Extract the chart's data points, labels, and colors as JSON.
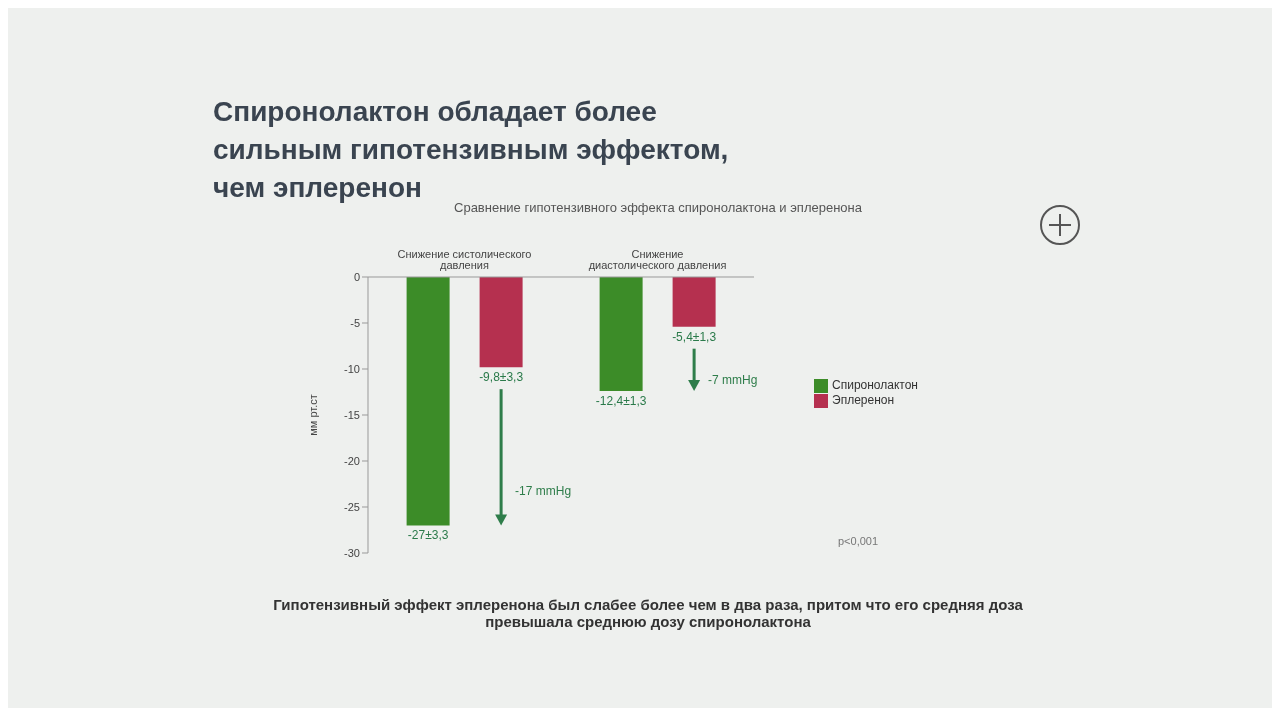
{
  "chart_data": {
    "type": "bar",
    "title": "Спиронолактон обладает более сильным гипотензивным эффектом, чем эплеренон",
    "subtitle": "Сравнение гипотензивного эффекта спиронолактона и эплеренона",
    "ylabel": "мм рт.ст",
    "categories": [
      "Снижение систолического давления",
      "Снижение диастолического давления"
    ],
    "series": [
      {
        "name": "Спиронолактон",
        "color": "#3c8c28",
        "values": [
          -27,
          -12.4
        ],
        "value_labels": [
          "-27±3,3",
          "-12,4±1,3"
        ]
      },
      {
        "name": "Эплеренон",
        "color": "#b5304f",
        "values": [
          -9.8,
          -5.4
        ],
        "value_labels": [
          "-9,8±3,3",
          "-5,4±1,3"
        ]
      }
    ],
    "ylim": [
      -30,
      0
    ],
    "yticks": [
      0,
      -5,
      -10,
      -15,
      -20,
      -25,
      -30
    ],
    "legend": "right",
    "annotations": [
      "-17 mmHg",
      "-7 mmHg",
      "p<0,001",
      "Гипотензивный эффект эплеренона был слабее более чем в два раза, притом что его средняя доза превышала среднюю дозу спиронолактона"
    ]
  }
}
